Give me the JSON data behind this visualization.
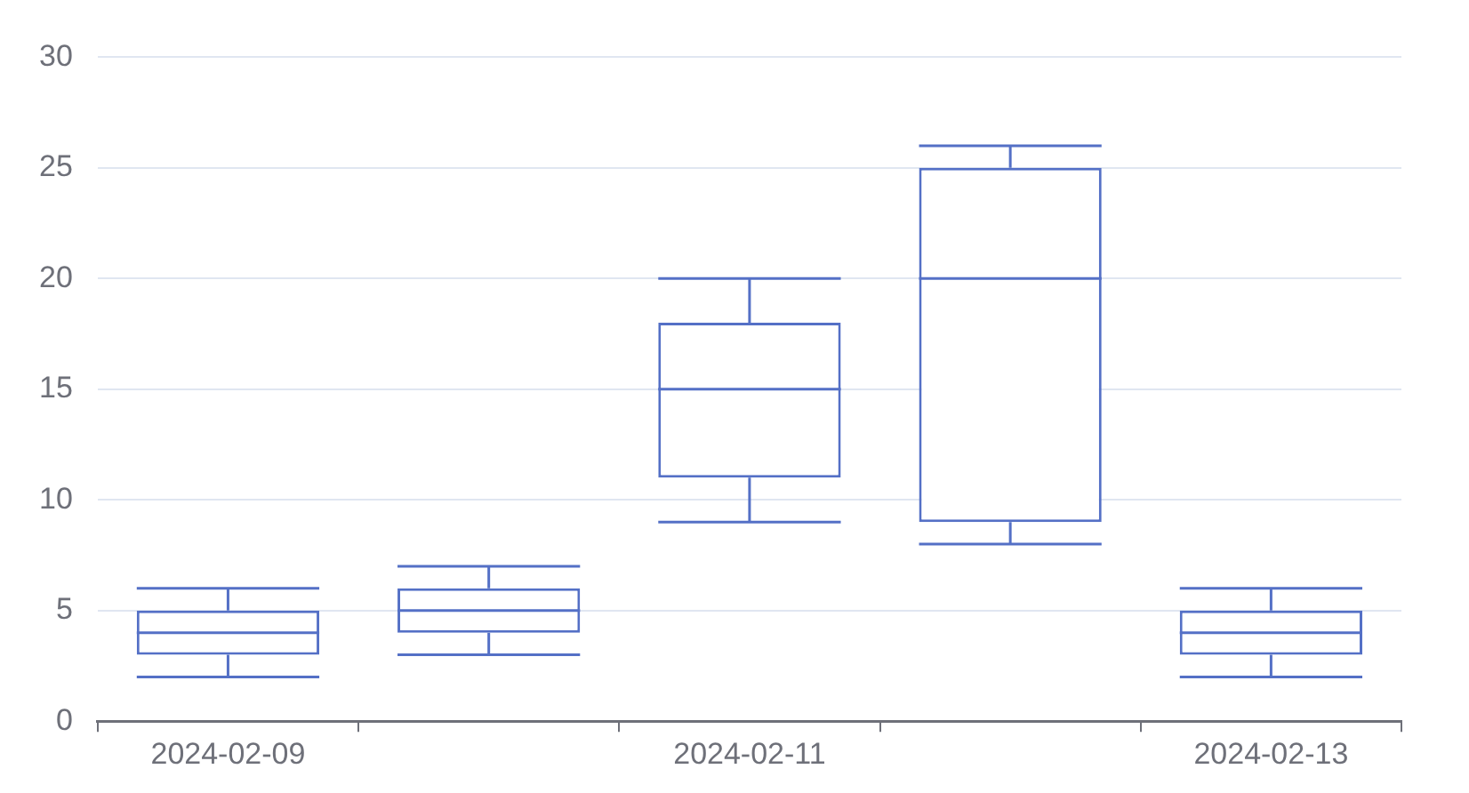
{
  "chart_data": {
    "type": "box",
    "categories": [
      "2024-02-09",
      null,
      "2024-02-11",
      null,
      "2024-02-13"
    ],
    "series": [
      {
        "color": "#5470c6",
        "boxes": [
          {
            "low": 2,
            "q1": 3,
            "median": 4,
            "q3": 5,
            "high": 6
          },
          {
            "low": 3,
            "q1": 4,
            "median": 5,
            "q3": 6,
            "high": 7
          },
          {
            "low": 9,
            "q1": 11,
            "median": 15,
            "q3": 18,
            "high": 20
          },
          {
            "low": 8,
            "q1": 9,
            "median": 20,
            "q3": 25,
            "high": 26
          },
          {
            "low": 2,
            "q1": 3,
            "median": 4,
            "q3": 5,
            "high": 6
          }
        ]
      }
    ],
    "ylim": [
      0,
      30
    ],
    "yticks": [
      0,
      5,
      10,
      15,
      20,
      25,
      30
    ],
    "grid": "y"
  }
}
